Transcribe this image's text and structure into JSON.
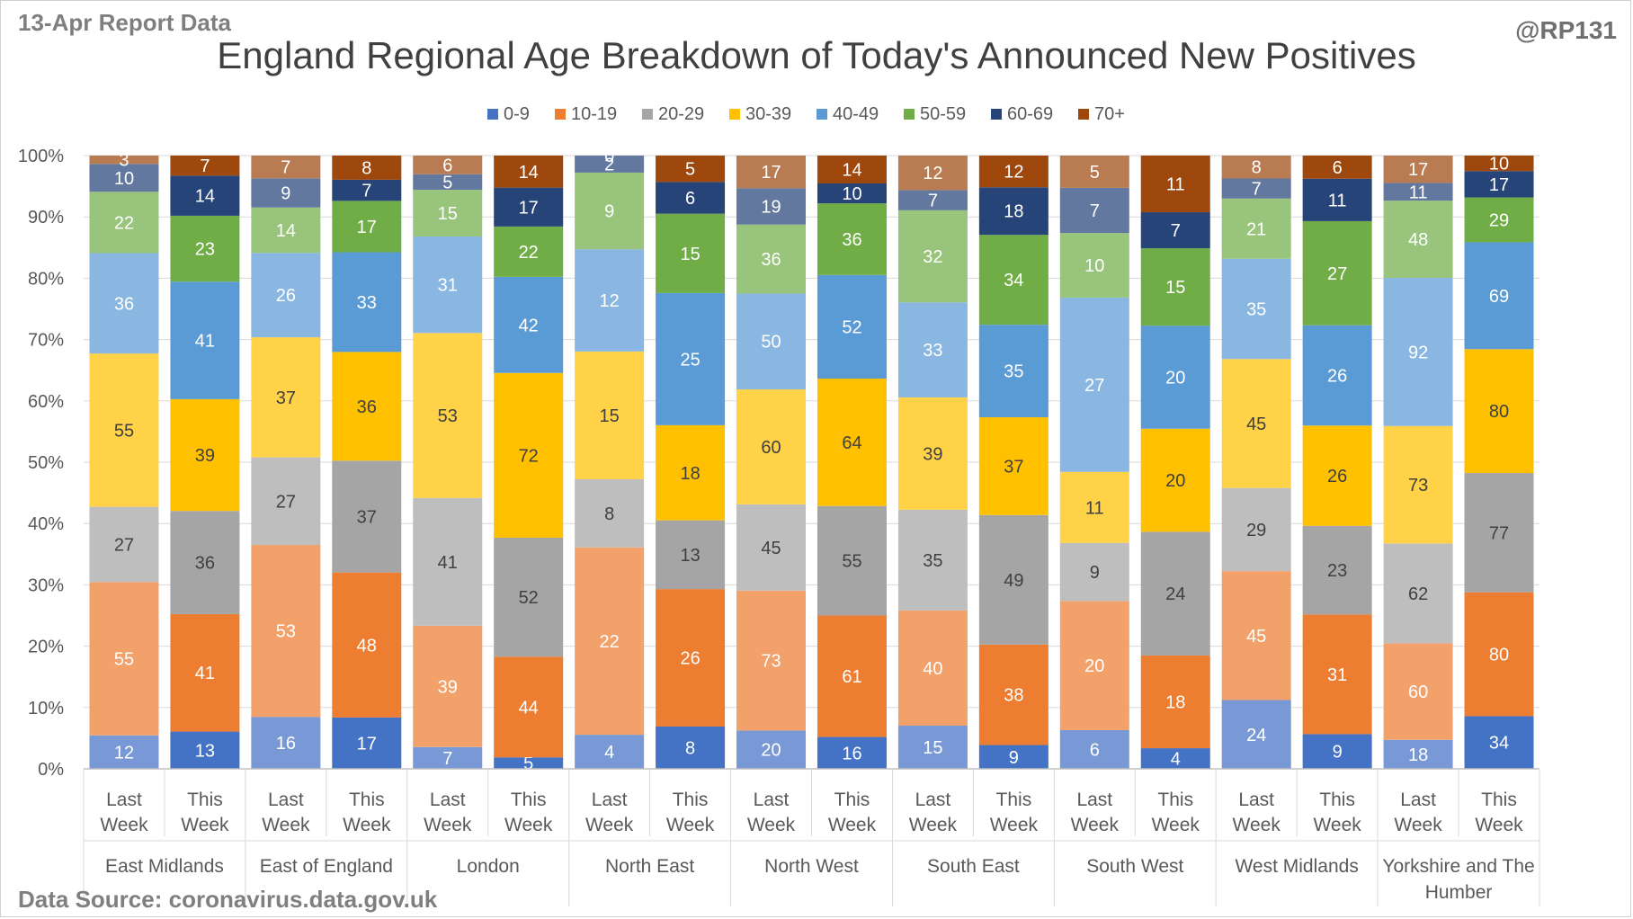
{
  "header": {
    "report_label": "13-Apr Report Data",
    "handle": "@RP131",
    "source": "Data Source: coronavirus.data.gov.uk"
  },
  "chart_data": {
    "type": "bar",
    "stacked": "percent",
    "title": "England Regional Age Breakdown of Today's Announced New Positives",
    "legend_position": "top",
    "ylim": [
      0,
      100
    ],
    "y_ticks": [
      "0%",
      "10%",
      "20%",
      "30%",
      "40%",
      "50%",
      "60%",
      "70%",
      "80%",
      "90%",
      "100%"
    ],
    "grid": true,
    "groups": [
      "East Midlands",
      "East of England",
      "London",
      "North East",
      "North West",
      "South East",
      "South West",
      "West Midlands",
      "Yorkshire and The Humber"
    ],
    "periods": [
      "Last Week",
      "This Week"
    ],
    "series": [
      {
        "name": "0-9",
        "color": "#4472c4",
        "values": [
          [
            12,
            13
          ],
          [
            16,
            17
          ],
          [
            7,
            5
          ],
          [
            4,
            8
          ],
          [
            20,
            16
          ],
          [
            15,
            9
          ],
          [
            6,
            4
          ],
          [
            24,
            9
          ],
          [
            18,
            34
          ]
        ]
      },
      {
        "name": "10-19",
        "color": "#ed7d31",
        "values": [
          [
            55,
            41
          ],
          [
            53,
            48
          ],
          [
            39,
            44
          ],
          [
            22,
            26
          ],
          [
            73,
            61
          ],
          [
            40,
            38
          ],
          [
            20,
            18
          ],
          [
            45,
            31
          ],
          [
            60,
            80
          ]
        ]
      },
      {
        "name": "20-29",
        "color": "#a5a5a5",
        "values": [
          [
            27,
            36
          ],
          [
            27,
            37
          ],
          [
            41,
            52
          ],
          [
            8,
            13
          ],
          [
            45,
            55
          ],
          [
            35,
            49
          ],
          [
            9,
            24
          ],
          [
            29,
            23
          ],
          [
            62,
            77
          ]
        ]
      },
      {
        "name": "30-39",
        "color": "#ffc000",
        "values": [
          [
            55,
            39
          ],
          [
            37,
            36
          ],
          [
            53,
            72
          ],
          [
            15,
            18
          ],
          [
            60,
            64
          ],
          [
            39,
            37
          ],
          [
            11,
            20
          ],
          [
            45,
            26
          ],
          [
            73,
            80
          ]
        ]
      },
      {
        "name": "40-49",
        "color": "#5b9bd5",
        "values": [
          [
            36,
            41
          ],
          [
            26,
            33
          ],
          [
            31,
            42
          ],
          [
            12,
            25
          ],
          [
            50,
            52
          ],
          [
            33,
            35
          ],
          [
            27,
            20
          ],
          [
            35,
            26
          ],
          [
            92,
            69
          ]
        ]
      },
      {
        "name": "50-59",
        "color": "#70ad47",
        "values": [
          [
            22,
            23
          ],
          [
            14,
            17
          ],
          [
            15,
            22
          ],
          [
            9,
            15
          ],
          [
            36,
            36
          ],
          [
            32,
            34
          ],
          [
            10,
            15
          ],
          [
            21,
            27
          ],
          [
            48,
            29
          ]
        ]
      },
      {
        "name": "60-69",
        "color": "#264478",
        "values": [
          [
            10,
            14
          ],
          [
            9,
            7
          ],
          [
            5,
            17
          ],
          [
            2,
            6
          ],
          [
            19,
            10
          ],
          [
            7,
            18
          ],
          [
            7,
            7
          ],
          [
            7,
            11
          ],
          [
            11,
            17
          ]
        ]
      },
      {
        "name": "70+",
        "color": "#9e480e",
        "values": [
          [
            3,
            7
          ],
          [
            7,
            8
          ],
          [
            6,
            14
          ],
          [
            0,
            5
          ],
          [
            17,
            14
          ],
          [
            12,
            12
          ],
          [
            5,
            11
          ],
          [
            8,
            6
          ],
          [
            17,
            10
          ]
        ]
      }
    ]
  }
}
